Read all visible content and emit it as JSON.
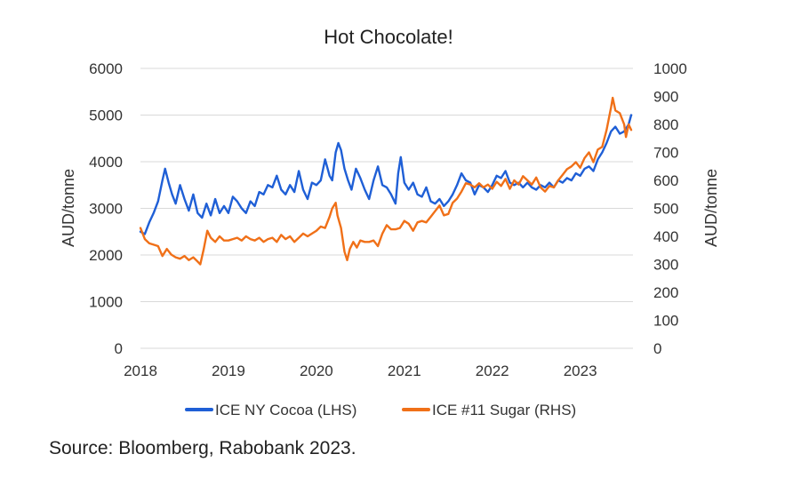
{
  "chart_data": {
    "type": "line",
    "title": "Hot Chocolate!",
    "x_ticks": [
      "2018",
      "2019",
      "2020",
      "2021",
      "2022",
      "2023"
    ],
    "x_range": [
      2018.0,
      2023.6
    ],
    "y_left": {
      "label": "AUD/tonne",
      "range": [
        0,
        6000
      ],
      "ticks": [
        "0",
        "1000",
        "2000",
        "3000",
        "4000",
        "5000",
        "6000"
      ]
    },
    "y_right": {
      "label": "AUD/tonne",
      "range": [
        0,
        1000
      ],
      "ticks": [
        "0",
        "100",
        "200",
        "300",
        "400",
        "500",
        "600",
        "700",
        "800",
        "900",
        "1000"
      ]
    },
    "grid": "horizontal",
    "legend_position": "bottom",
    "series": [
      {
        "name": "ICE NY Cocoa (LHS)",
        "axis": "left",
        "color": "#1f5fd6",
        "points": [
          [
            2018.0,
            2500
          ],
          [
            2018.05,
            2450
          ],
          [
            2018.1,
            2700
          ],
          [
            2018.15,
            2900
          ],
          [
            2018.2,
            3150
          ],
          [
            2018.25,
            3600
          ],
          [
            2018.28,
            3850
          ],
          [
            2018.32,
            3550
          ],
          [
            2018.36,
            3300
          ],
          [
            2018.4,
            3100
          ],
          [
            2018.45,
            3500
          ],
          [
            2018.5,
            3200
          ],
          [
            2018.55,
            2950
          ],
          [
            2018.6,
            3300
          ],
          [
            2018.65,
            2900
          ],
          [
            2018.7,
            2800
          ],
          [
            2018.75,
            3100
          ],
          [
            2018.8,
            2850
          ],
          [
            2018.85,
            3200
          ],
          [
            2018.9,
            2900
          ],
          [
            2018.95,
            3050
          ],
          [
            2019.0,
            2900
          ],
          [
            2019.05,
            3250
          ],
          [
            2019.1,
            3150
          ],
          [
            2019.15,
            3000
          ],
          [
            2019.2,
            2900
          ],
          [
            2019.25,
            3150
          ],
          [
            2019.3,
            3050
          ],
          [
            2019.35,
            3350
          ],
          [
            2019.4,
            3300
          ],
          [
            2019.45,
            3500
          ],
          [
            2019.5,
            3450
          ],
          [
            2019.55,
            3700
          ],
          [
            2019.6,
            3400
          ],
          [
            2019.65,
            3300
          ],
          [
            2019.7,
            3500
          ],
          [
            2019.75,
            3350
          ],
          [
            2019.8,
            3800
          ],
          [
            2019.85,
            3400
          ],
          [
            2019.9,
            3200
          ],
          [
            2019.95,
            3550
          ],
          [
            2020.0,
            3500
          ],
          [
            2020.05,
            3600
          ],
          [
            2020.1,
            4050
          ],
          [
            2020.15,
            3700
          ],
          [
            2020.18,
            3600
          ],
          [
            2020.22,
            4200
          ],
          [
            2020.25,
            4400
          ],
          [
            2020.28,
            4250
          ],
          [
            2020.32,
            3850
          ],
          [
            2020.36,
            3600
          ],
          [
            2020.4,
            3400
          ],
          [
            2020.45,
            3850
          ],
          [
            2020.5,
            3650
          ],
          [
            2020.55,
            3400
          ],
          [
            2020.6,
            3200
          ],
          [
            2020.65,
            3600
          ],
          [
            2020.7,
            3900
          ],
          [
            2020.75,
            3500
          ],
          [
            2020.8,
            3450
          ],
          [
            2020.85,
            3300
          ],
          [
            2020.9,
            3100
          ],
          [
            2020.93,
            3750
          ],
          [
            2020.96,
            4100
          ],
          [
            2021.0,
            3550
          ],
          [
            2021.05,
            3400
          ],
          [
            2021.1,
            3550
          ],
          [
            2021.15,
            3300
          ],
          [
            2021.2,
            3250
          ],
          [
            2021.25,
            3450
          ],
          [
            2021.3,
            3150
          ],
          [
            2021.35,
            3100
          ],
          [
            2021.4,
            3200
          ],
          [
            2021.45,
            3050
          ],
          [
            2021.5,
            3150
          ],
          [
            2021.55,
            3300
          ],
          [
            2021.6,
            3500
          ],
          [
            2021.65,
            3750
          ],
          [
            2021.7,
            3600
          ],
          [
            2021.75,
            3550
          ],
          [
            2021.8,
            3300
          ],
          [
            2021.85,
            3500
          ],
          [
            2021.9,
            3450
          ],
          [
            2021.95,
            3350
          ],
          [
            2022.0,
            3500
          ],
          [
            2022.05,
            3700
          ],
          [
            2022.1,
            3650
          ],
          [
            2022.15,
            3800
          ],
          [
            2022.2,
            3550
          ],
          [
            2022.25,
            3500
          ],
          [
            2022.3,
            3550
          ],
          [
            2022.35,
            3450
          ],
          [
            2022.4,
            3550
          ],
          [
            2022.45,
            3450
          ],
          [
            2022.5,
            3400
          ],
          [
            2022.55,
            3500
          ],
          [
            2022.6,
            3450
          ],
          [
            2022.65,
            3550
          ],
          [
            2022.7,
            3450
          ],
          [
            2022.75,
            3600
          ],
          [
            2022.8,
            3550
          ],
          [
            2022.85,
            3650
          ],
          [
            2022.9,
            3600
          ],
          [
            2022.95,
            3750
          ],
          [
            2023.0,
            3700
          ],
          [
            2023.05,
            3850
          ],
          [
            2023.1,
            3900
          ],
          [
            2023.15,
            3800
          ],
          [
            2023.2,
            4050
          ],
          [
            2023.25,
            4200
          ],
          [
            2023.3,
            4400
          ],
          [
            2023.35,
            4650
          ],
          [
            2023.4,
            4750
          ],
          [
            2023.45,
            4600
          ],
          [
            2023.5,
            4650
          ],
          [
            2023.55,
            4800
          ],
          [
            2023.58,
            5000
          ]
        ]
      },
      {
        "name": "ICE #11 Sugar (RHS)",
        "axis": "right",
        "color": "#f07018",
        "points": [
          [
            2018.0,
            430
          ],
          [
            2018.05,
            390
          ],
          [
            2018.1,
            375
          ],
          [
            2018.15,
            370
          ],
          [
            2018.2,
            365
          ],
          [
            2018.25,
            330
          ],
          [
            2018.3,
            355
          ],
          [
            2018.35,
            335
          ],
          [
            2018.4,
            325
          ],
          [
            2018.45,
            320
          ],
          [
            2018.5,
            330
          ],
          [
            2018.55,
            315
          ],
          [
            2018.6,
            325
          ],
          [
            2018.65,
            310
          ],
          [
            2018.68,
            300
          ],
          [
            2018.72,
            355
          ],
          [
            2018.76,
            420
          ],
          [
            2018.8,
            395
          ],
          [
            2018.85,
            380
          ],
          [
            2018.9,
            400
          ],
          [
            2018.95,
            385
          ],
          [
            2019.0,
            385
          ],
          [
            2019.05,
            390
          ],
          [
            2019.1,
            395
          ],
          [
            2019.15,
            385
          ],
          [
            2019.2,
            400
          ],
          [
            2019.25,
            390
          ],
          [
            2019.3,
            385
          ],
          [
            2019.35,
            395
          ],
          [
            2019.4,
            380
          ],
          [
            2019.45,
            390
          ],
          [
            2019.5,
            395
          ],
          [
            2019.55,
            380
          ],
          [
            2019.6,
            405
          ],
          [
            2019.65,
            390
          ],
          [
            2019.7,
            400
          ],
          [
            2019.75,
            380
          ],
          [
            2019.8,
            395
          ],
          [
            2019.85,
            410
          ],
          [
            2019.9,
            400
          ],
          [
            2019.95,
            410
          ],
          [
            2020.0,
            420
          ],
          [
            2020.05,
            435
          ],
          [
            2020.1,
            430
          ],
          [
            2020.15,
            470
          ],
          [
            2020.18,
            500
          ],
          [
            2020.22,
            520
          ],
          [
            2020.24,
            475
          ],
          [
            2020.28,
            430
          ],
          [
            2020.32,
            345
          ],
          [
            2020.35,
            315
          ],
          [
            2020.38,
            355
          ],
          [
            2020.42,
            380
          ],
          [
            2020.46,
            360
          ],
          [
            2020.5,
            385
          ],
          [
            2020.55,
            380
          ],
          [
            2020.6,
            380
          ],
          [
            2020.65,
            385
          ],
          [
            2020.7,
            365
          ],
          [
            2020.75,
            410
          ],
          [
            2020.8,
            440
          ],
          [
            2020.85,
            425
          ],
          [
            2020.9,
            425
          ],
          [
            2020.95,
            430
          ],
          [
            2021.0,
            455
          ],
          [
            2021.05,
            445
          ],
          [
            2021.1,
            420
          ],
          [
            2021.15,
            450
          ],
          [
            2021.2,
            455
          ],
          [
            2021.25,
            450
          ],
          [
            2021.3,
            470
          ],
          [
            2021.35,
            490
          ],
          [
            2021.4,
            510
          ],
          [
            2021.45,
            475
          ],
          [
            2021.5,
            480
          ],
          [
            2021.55,
            520
          ],
          [
            2021.6,
            535
          ],
          [
            2021.65,
            560
          ],
          [
            2021.7,
            590
          ],
          [
            2021.75,
            585
          ],
          [
            2021.8,
            575
          ],
          [
            2021.85,
            590
          ],
          [
            2021.9,
            575
          ],
          [
            2021.95,
            585
          ],
          [
            2022.0,
            570
          ],
          [
            2022.05,
            595
          ],
          [
            2022.1,
            580
          ],
          [
            2022.15,
            605
          ],
          [
            2022.2,
            570
          ],
          [
            2022.25,
            600
          ],
          [
            2022.3,
            585
          ],
          [
            2022.35,
            615
          ],
          [
            2022.4,
            600
          ],
          [
            2022.45,
            585
          ],
          [
            2022.5,
            610
          ],
          [
            2022.55,
            575
          ],
          [
            2022.6,
            560
          ],
          [
            2022.65,
            580
          ],
          [
            2022.7,
            575
          ],
          [
            2022.75,
            600
          ],
          [
            2022.8,
            620
          ],
          [
            2022.85,
            640
          ],
          [
            2022.9,
            650
          ],
          [
            2022.95,
            665
          ],
          [
            2023.0,
            645
          ],
          [
            2023.05,
            680
          ],
          [
            2023.1,
            700
          ],
          [
            2023.15,
            665
          ],
          [
            2023.2,
            710
          ],
          [
            2023.25,
            720
          ],
          [
            2023.3,
            780
          ],
          [
            2023.35,
            860
          ],
          [
            2023.37,
            895
          ],
          [
            2023.4,
            850
          ],
          [
            2023.45,
            840
          ],
          [
            2023.5,
            800
          ],
          [
            2023.52,
            755
          ],
          [
            2023.55,
            800
          ],
          [
            2023.58,
            780
          ]
        ]
      }
    ]
  },
  "source_note": "Source: Bloomberg, Rabobank 2023."
}
